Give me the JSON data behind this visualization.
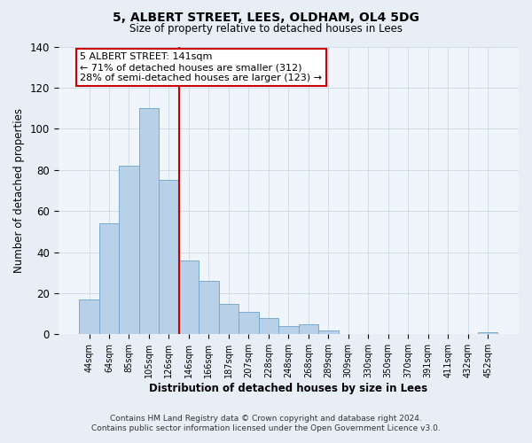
{
  "title": "5, ALBERT STREET, LEES, OLDHAM, OL4 5DG",
  "subtitle": "Size of property relative to detached houses in Lees",
  "xlabel": "Distribution of detached houses by size in Lees",
  "ylabel": "Number of detached properties",
  "bar_labels": [
    "44sqm",
    "64sqm",
    "85sqm",
    "105sqm",
    "126sqm",
    "146sqm",
    "166sqm",
    "187sqm",
    "207sqm",
    "228sqm",
    "248sqm",
    "268sqm",
    "289sqm",
    "309sqm",
    "330sqm",
    "350sqm",
    "370sqm",
    "391sqm",
    "411sqm",
    "432sqm",
    "452sqm"
  ],
  "bar_values": [
    17,
    54,
    82,
    110,
    75,
    36,
    26,
    15,
    11,
    8,
    4,
    5,
    2,
    0,
    0,
    0,
    0,
    0,
    0,
    0,
    1
  ],
  "bar_color": "#b8d0e8",
  "bar_edge_color": "#7aabcf",
  "vline_x_idx": 5,
  "vline_color": "#cc0000",
  "ylim": [
    0,
    140
  ],
  "yticks": [
    0,
    20,
    40,
    60,
    80,
    100,
    120,
    140
  ],
  "annotation_title": "5 ALBERT STREET: 141sqm",
  "annotation_line1": "← 71% of detached houses are smaller (312)",
  "annotation_line2": "28% of semi-detached houses are larger (123) →",
  "footnote1": "Contains HM Land Registry data © Crown copyright and database right 2024.",
  "footnote2": "Contains public sector information licensed under the Open Government Licence v3.0.",
  "background_color": "#e8eef6",
  "plot_bg_color": "#f0f5fb",
  "grid_color": "#c8d8e8"
}
